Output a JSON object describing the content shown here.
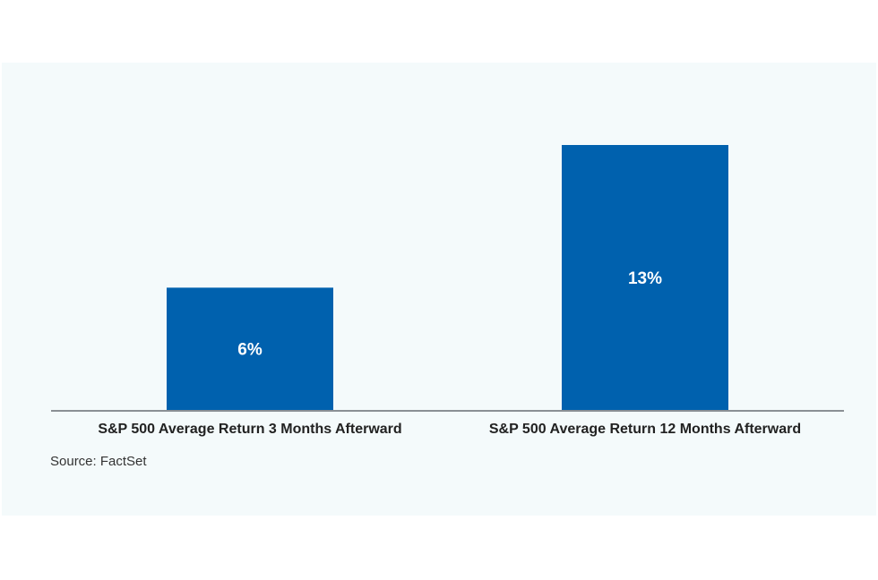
{
  "chart_data": {
    "type": "bar",
    "categories": [
      "S&P 500 Average Return 3 Months Afterward",
      "S&P 500 Average Return 12 Months Afterward"
    ],
    "values": [
      6,
      13
    ],
    "data_labels": [
      "6%",
      "13%"
    ],
    "title": "",
    "xlabel": "",
    "ylabel": "",
    "ylim": [
      0,
      13
    ],
    "grid": false,
    "legend": "none",
    "colors": {
      "bar": "#0061ae",
      "label_text": "#ffffff",
      "axis": "#8a8f94",
      "category_text": "#222222",
      "background": "#f4fafb"
    }
  },
  "source": "Source: FactSet"
}
